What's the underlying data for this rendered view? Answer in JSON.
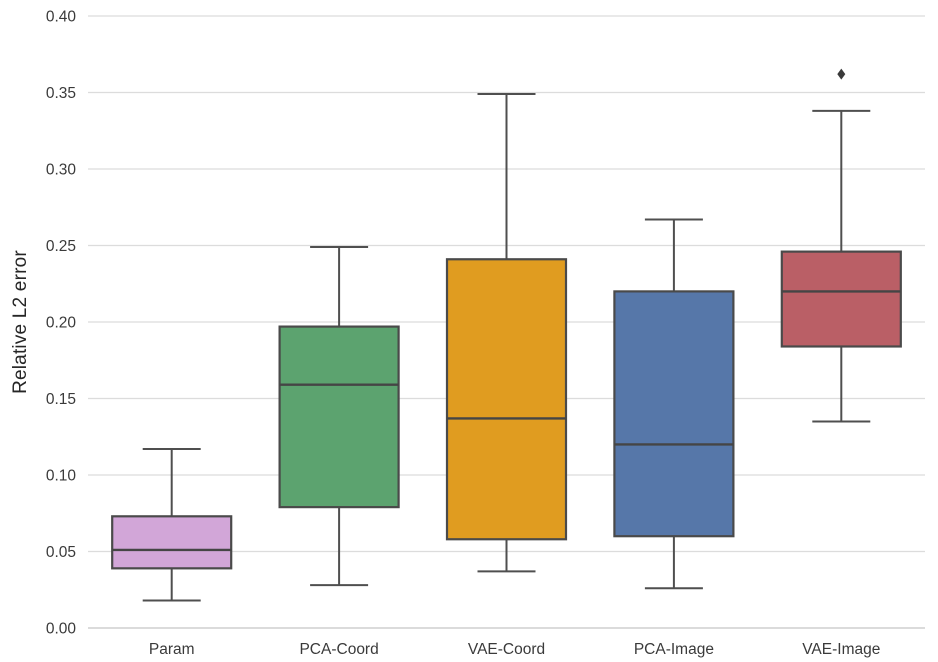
{
  "chart_data": {
    "type": "box",
    "title": "",
    "xlabel": "",
    "ylabel": "Relative L2 error",
    "ylim": [
      0.0,
      0.4
    ],
    "ytick_values": [
      0.0,
      0.05,
      0.1,
      0.15,
      0.2,
      0.25,
      0.3,
      0.35,
      0.4
    ],
    "ytick_labels": [
      "0.00",
      "0.05",
      "0.10",
      "0.15",
      "0.20",
      "0.25",
      "0.30",
      "0.35",
      "0.40"
    ],
    "categories": [
      "Param",
      "PCA-Coord",
      "VAE-Coord",
      "PCA-Image",
      "VAE-Image"
    ],
    "grid": "horizontal",
    "legend": "none",
    "series": [
      {
        "name": "Param",
        "color": "#D2A6D8",
        "whisker_low": 0.018,
        "q1": 0.039,
        "median": 0.051,
        "q3": 0.073,
        "whisker_high": 0.117,
        "outliers": []
      },
      {
        "name": "PCA-Coord",
        "color": "#5CA36F",
        "whisker_low": 0.028,
        "q1": 0.079,
        "median": 0.159,
        "q3": 0.197,
        "whisker_high": 0.249,
        "outliers": []
      },
      {
        "name": "VAE-Coord",
        "color": "#E09C20",
        "whisker_low": 0.037,
        "q1": 0.058,
        "median": 0.137,
        "q3": 0.241,
        "whisker_high": 0.349,
        "outliers": []
      },
      {
        "name": "PCA-Image",
        "color": "#5677A9",
        "whisker_low": 0.026,
        "q1": 0.06,
        "median": 0.12,
        "q3": 0.22,
        "whisker_high": 0.267,
        "outliers": []
      },
      {
        "name": "VAE-Image",
        "color": "#BA5F66",
        "whisker_low": 0.135,
        "q1": 0.184,
        "median": 0.22,
        "q3": 0.246,
        "whisker_high": 0.338,
        "outliers": [
          0.362
        ]
      }
    ],
    "colors": {
      "background": "#ffffff",
      "grid_line": "#dcdcdc",
      "axis_line": "#cfcfcf",
      "box_edge": "#4a4a4a",
      "median_line": "#454545",
      "whisker": "#4f4f4f",
      "outlier": "#3a3a3a",
      "tick_label": "#3a3a3a",
      "axis_label": "#262626"
    }
  }
}
